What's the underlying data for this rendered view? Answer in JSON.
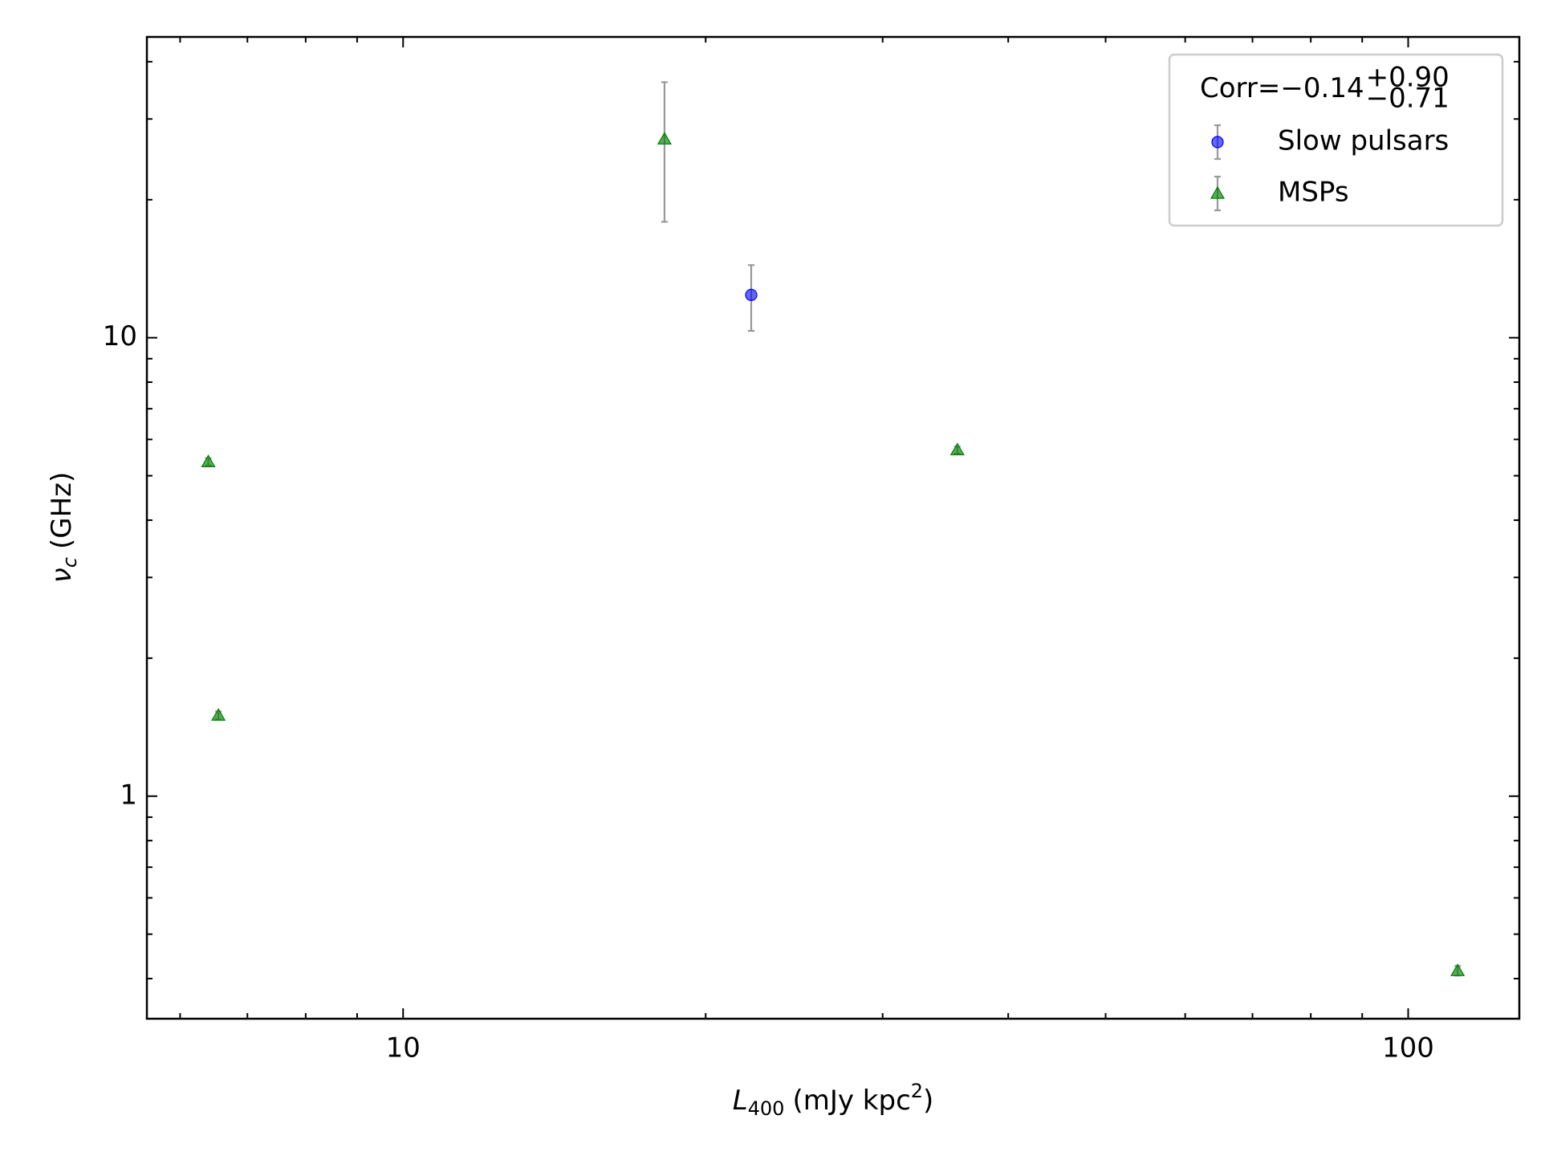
{
  "chart_data": {
    "type": "scatter",
    "xlabel": {
      "symbol": "L",
      "subscript": "400",
      "unit": "(mJy kpc",
      "superscript": "2",
      "close": ")"
    },
    "ylabel": {
      "symbol": "ν",
      "subscript": "c",
      "unit": "(GHz)"
    },
    "xscale": "log",
    "yscale": "log",
    "xlim": [
      5.56,
      129
    ],
    "ylim": [
      0.327,
      45.3
    ],
    "xticks": [
      10,
      100
    ],
    "yticks": [
      1,
      10
    ],
    "xminorticks": [
      6,
      7,
      8,
      9,
      20,
      30,
      40,
      50,
      60,
      70,
      80,
      90
    ],
    "yminorticks": [
      0.4,
      0.5,
      0.6,
      0.7,
      0.8,
      0.9,
      2,
      3,
      4,
      5,
      6,
      7,
      8,
      9,
      20,
      30,
      40
    ],
    "legend": "upper right",
    "legend_title": {
      "text": "Corr=−0.14",
      "upper": "+0.90",
      "lower": "−0.71"
    },
    "errorbar_color": "#999999",
    "series": [
      {
        "name": "Slow pulsars",
        "color": "#0000ff",
        "marker": "circle",
        "x": [
          22.2
        ],
        "values": [
          12.4
        ],
        "yerr_minus": [
          2.05
        ],
        "yerr_plus": [
          2.0
        ]
      },
      {
        "name": "MSPs",
        "color": "#008000",
        "marker": "triangle",
        "x": [
          6.4,
          6.55,
          18.2,
          35.6,
          112
        ],
        "values": [
          5.36,
          1.5,
          27.1,
          5.69,
          0.416
        ],
        "yerr_minus": [
          0.1,
          0.03,
          9.2,
          0.1,
          0.01
        ],
        "yerr_plus": [
          0.1,
          0.03,
          9.0,
          0.1,
          0.01
        ]
      }
    ]
  }
}
